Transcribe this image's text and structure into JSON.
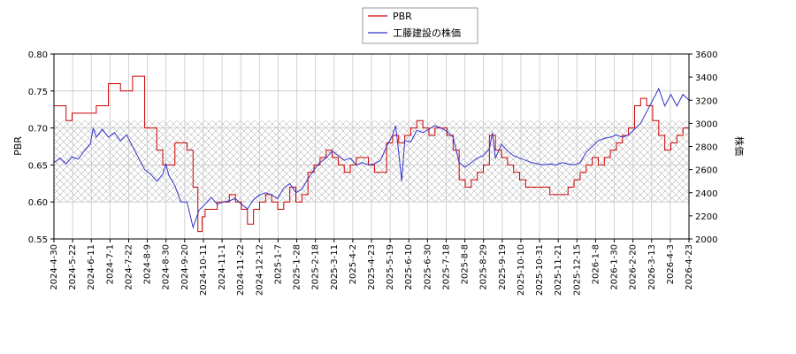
{
  "chart_data": {
    "type": "line",
    "title": "",
    "xlabel": "",
    "ylabel_left": "PBR",
    "ylabel_right": "株価",
    "x_ticks": [
      "2024-4-30",
      "2024-5-22",
      "2024-6-11",
      "2024-7-1",
      "2024-7-22",
      "2024-8-9",
      "2024-8-30",
      "2024-9-20",
      "2024-10-11",
      "2024-11-1",
      "2024-11-22",
      "2024-12-12",
      "2025-1-7",
      "2025-1-28",
      "2025-2-18",
      "2025-3-11",
      "2025-4-2",
      "2025-4-23",
      "2025-5-19",
      "2025-6-10",
      "2025-6-30",
      "2025-7-18",
      "2025-8-8",
      "2025-8-29",
      "2025-9-19",
      "2025-10-10",
      "2025-10-31",
      "2025-11-21",
      "2025-12-15",
      "2026-1-8",
      "2026-1-30",
      "2026-2-20",
      "2026-3-13",
      "2026-4-3",
      "2026-4-23"
    ],
    "y_left_ticks": [
      "0.55",
      "0.60",
      "0.65",
      "0.70",
      "0.75",
      "0.80"
    ],
    "y_right_ticks": [
      "2000",
      "2200",
      "2400",
      "2600",
      "2800",
      "3000",
      "3200",
      "3400",
      "3600"
    ],
    "ylim_left": [
      0.55,
      0.8
    ],
    "ylim_right": [
      2000,
      3600
    ],
    "band_left": [
      0.6,
      0.71
    ],
    "grid": true,
    "legend_position": "top-center",
    "series": [
      {
        "name": "PBR",
        "axis": "left",
        "color": "#cc0000",
        "points": [
          [
            0,
            0.73
          ],
          [
            2,
            0.71
          ],
          [
            3,
            0.72
          ],
          [
            7,
            0.73
          ],
          [
            9,
            0.76
          ],
          [
            11,
            0.75
          ],
          [
            13,
            0.77
          ],
          [
            15,
            0.7
          ],
          [
            17,
            0.67
          ],
          [
            18,
            0.65
          ],
          [
            20,
            0.68
          ],
          [
            22,
            0.67
          ],
          [
            23,
            0.62
          ],
          [
            23.8,
            0.56
          ],
          [
            24.5,
            0.58
          ],
          [
            25,
            0.59
          ],
          [
            27,
            0.6
          ],
          [
            29,
            0.61
          ],
          [
            30,
            0.6
          ],
          [
            31,
            0.59
          ],
          [
            32,
            0.57
          ],
          [
            33,
            0.59
          ],
          [
            34,
            0.6
          ],
          [
            35,
            0.61
          ],
          [
            36,
            0.6
          ],
          [
            37,
            0.59
          ],
          [
            38,
            0.6
          ],
          [
            39,
            0.62
          ],
          [
            40,
            0.6
          ],
          [
            41,
            0.61
          ],
          [
            42,
            0.64
          ],
          [
            43,
            0.65
          ],
          [
            44,
            0.66
          ],
          [
            45,
            0.67
          ],
          [
            46,
            0.66
          ],
          [
            47,
            0.65
          ],
          [
            48,
            0.64
          ],
          [
            49,
            0.65
          ],
          [
            50,
            0.66
          ],
          [
            52,
            0.65
          ],
          [
            53,
            0.64
          ],
          [
            55,
            0.68
          ],
          [
            56,
            0.69
          ],
          [
            57,
            0.68
          ],
          [
            58,
            0.69
          ],
          [
            59,
            0.7
          ],
          [
            60,
            0.71
          ],
          [
            61,
            0.7
          ],
          [
            62,
            0.69
          ],
          [
            63,
            0.7
          ],
          [
            65,
            0.69
          ],
          [
            66,
            0.67
          ],
          [
            67,
            0.63
          ],
          [
            68,
            0.62
          ],
          [
            69,
            0.63
          ],
          [
            70,
            0.64
          ],
          [
            71,
            0.65
          ],
          [
            72,
            0.69
          ],
          [
            73,
            0.67
          ],
          [
            74,
            0.66
          ],
          [
            75,
            0.65
          ],
          [
            76,
            0.64
          ],
          [
            77,
            0.63
          ],
          [
            78,
            0.62
          ],
          [
            80,
            0.62
          ],
          [
            82,
            0.61
          ],
          [
            84,
            0.61
          ],
          [
            85,
            0.62
          ],
          [
            86,
            0.63
          ],
          [
            87,
            0.64
          ],
          [
            88,
            0.65
          ],
          [
            89,
            0.66
          ],
          [
            90,
            0.65
          ],
          [
            91,
            0.66
          ],
          [
            92,
            0.67
          ],
          [
            93,
            0.68
          ],
          [
            94,
            0.69
          ],
          [
            95,
            0.7
          ],
          [
            96,
            0.73
          ],
          [
            97,
            0.74
          ],
          [
            98,
            0.73
          ],
          [
            99,
            0.71
          ],
          [
            100,
            0.69
          ],
          [
            101,
            0.67
          ],
          [
            102,
            0.68
          ],
          [
            103,
            0.69
          ],
          [
            104,
            0.7
          ],
          [
            105,
            0.7
          ]
        ]
      },
      {
        "name": "工藤建設の株価",
        "axis": "right",
        "color": "#3333cc",
        "points": [
          [
            0,
            2660
          ],
          [
            1,
            2700
          ],
          [
            2,
            2650
          ],
          [
            3,
            2710
          ],
          [
            4,
            2690
          ],
          [
            5,
            2760
          ],
          [
            6,
            2820
          ],
          [
            6.5,
            2960
          ],
          [
            7,
            2880
          ],
          [
            8,
            2950
          ],
          [
            9,
            2880
          ],
          [
            10,
            2920
          ],
          [
            11,
            2850
          ],
          [
            12,
            2900
          ],
          [
            13,
            2800
          ],
          [
            14,
            2700
          ],
          [
            15,
            2600
          ],
          [
            16,
            2560
          ],
          [
            17,
            2500
          ],
          [
            18,
            2560
          ],
          [
            18.5,
            2650
          ],
          [
            19,
            2550
          ],
          [
            20,
            2460
          ],
          [
            21,
            2320
          ],
          [
            22,
            2320
          ],
          [
            23,
            2100
          ],
          [
            24,
            2250
          ],
          [
            25,
            2300
          ],
          [
            26,
            2360
          ],
          [
            27,
            2300
          ],
          [
            28,
            2320
          ],
          [
            29,
            2330
          ],
          [
            30,
            2350
          ],
          [
            31,
            2300
          ],
          [
            32,
            2260
          ],
          [
            33,
            2340
          ],
          [
            34,
            2380
          ],
          [
            35,
            2400
          ],
          [
            36,
            2380
          ],
          [
            37,
            2350
          ],
          [
            38,
            2440
          ],
          [
            39,
            2480
          ],
          [
            40,
            2400
          ],
          [
            41,
            2430
          ],
          [
            42,
            2520
          ],
          [
            43,
            2600
          ],
          [
            44,
            2660
          ],
          [
            45,
            2700
          ],
          [
            46,
            2760
          ],
          [
            47,
            2720
          ],
          [
            48,
            2680
          ],
          [
            49,
            2700
          ],
          [
            50,
            2640
          ],
          [
            51,
            2660
          ],
          [
            52,
            2640
          ],
          [
            53,
            2650
          ],
          [
            54,
            2680
          ],
          [
            55,
            2800
          ],
          [
            56,
            2900
          ],
          [
            56.5,
            2980
          ],
          [
            57,
            2750
          ],
          [
            57.5,
            2500
          ],
          [
            58,
            2850
          ],
          [
            59,
            2840
          ],
          [
            60,
            2940
          ],
          [
            61,
            2920
          ],
          [
            62,
            2950
          ],
          [
            63,
            2980
          ],
          [
            64,
            2960
          ],
          [
            65,
            2930
          ],
          [
            66,
            2880
          ],
          [
            67,
            2660
          ],
          [
            68,
            2620
          ],
          [
            69,
            2660
          ],
          [
            70,
            2700
          ],
          [
            71,
            2720
          ],
          [
            72,
            2780
          ],
          [
            72.5,
            2920
          ],
          [
            73,
            2700
          ],
          [
            74,
            2820
          ],
          [
            75,
            2760
          ],
          [
            76,
            2720
          ],
          [
            77,
            2700
          ],
          [
            78,
            2680
          ],
          [
            79,
            2660
          ],
          [
            80,
            2650
          ],
          [
            81,
            2640
          ],
          [
            82,
            2650
          ],
          [
            83,
            2640
          ],
          [
            84,
            2660
          ],
          [
            85,
            2650
          ],
          [
            86,
            2640
          ],
          [
            87,
            2660
          ],
          [
            88,
            2750
          ],
          [
            89,
            2800
          ],
          [
            90,
            2850
          ],
          [
            91,
            2870
          ],
          [
            92,
            2880
          ],
          [
            93,
            2900
          ],
          [
            94,
            2880
          ],
          [
            95,
            2900
          ],
          [
            96,
            2950
          ],
          [
            97,
            3000
          ],
          [
            98,
            3100
          ],
          [
            99,
            3200
          ],
          [
            100,
            3300
          ],
          [
            101,
            3150
          ],
          [
            102,
            3250
          ],
          [
            103,
            3150
          ],
          [
            104,
            3250
          ],
          [
            105,
            3200
          ]
        ]
      }
    ]
  }
}
